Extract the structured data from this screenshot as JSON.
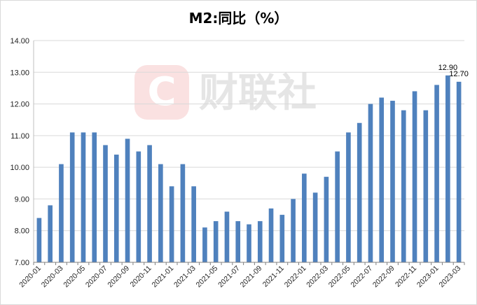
{
  "chart_data": {
    "type": "bar",
    "title": "M2:同比（%）",
    "xlabel": "",
    "ylabel": "",
    "ylim": [
      7,
      14
    ],
    "yticks": [
      "7.00",
      "8.00",
      "9.00",
      "10.00",
      "11.00",
      "12.00",
      "13.00",
      "14.00"
    ],
    "grid": "horizontal",
    "bar_color": "#4f81bd",
    "categories": [
      "2020-01",
      "2020-02",
      "2020-03",
      "2020-04",
      "2020-05",
      "2020-06",
      "2020-07",
      "2020-08",
      "2020-09",
      "2020-10",
      "2020-11",
      "2020-12",
      "2021-01",
      "2021-02",
      "2021-03",
      "2021-04",
      "2021-05",
      "2021-06",
      "2021-07",
      "2021-08",
      "2021-09",
      "2021-10",
      "2021-11",
      "2021-12",
      "2022-01",
      "2022-02",
      "2022-03",
      "2022-04",
      "2022-05",
      "2022-06",
      "2022-07",
      "2022-08",
      "2022-09",
      "2022-10",
      "2022-11",
      "2022-12",
      "2023-01",
      "2023-02",
      "2023-03"
    ],
    "values": [
      8.4,
      8.8,
      10.1,
      11.1,
      11.1,
      11.1,
      10.7,
      10.4,
      10.9,
      10.5,
      10.7,
      10.1,
      9.4,
      10.1,
      9.4,
      8.1,
      8.3,
      8.6,
      8.3,
      8.2,
      8.3,
      8.7,
      8.5,
      9.0,
      9.8,
      9.2,
      9.7,
      10.5,
      11.1,
      11.4,
      12.0,
      12.2,
      12.1,
      11.8,
      12.4,
      11.8,
      12.6,
      12.9,
      12.7
    ],
    "xtick_labels": [
      "2020-01",
      "2020-03",
      "2020-05",
      "2020-07",
      "2020-09",
      "2020-11",
      "2021-01",
      "2021-03",
      "2021-05",
      "2021-07",
      "2021-09",
      "2021-11",
      "2022-01",
      "2022-03",
      "2022-05",
      "2022-07",
      "2022-09",
      "2022-11",
      "2023-01",
      "2023-03"
    ],
    "data_labels": [
      {
        "category": "2023-02",
        "text": "12.90"
      },
      {
        "category": "2023-03",
        "text": "12.70"
      }
    ]
  },
  "watermark": {
    "text": "财联社",
    "logo_letter": "C",
    "color": "#f6c9c9"
  }
}
